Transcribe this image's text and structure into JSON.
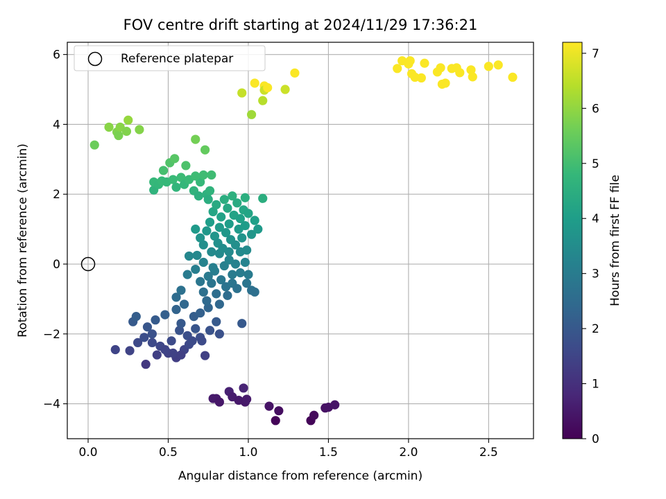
{
  "chart_data": {
    "type": "scatter",
    "title": "FOV centre drift starting at 2024/11/29 17:36:21",
    "xlabel": "Angular distance from reference (arcmin)",
    "ylabel": "Rotation from reference (arcmin)",
    "xlim": [
      -0.13,
      2.78
    ],
    "ylim": [
      -5.0,
      6.35
    ],
    "xticks": [
      0.0,
      0.5,
      1.0,
      1.5,
      2.0,
      2.5
    ],
    "xtick_labels": [
      "0.0",
      "0.5",
      "1.0",
      "1.5",
      "2.0",
      "2.5"
    ],
    "yticks": [
      -4,
      -2,
      0,
      2,
      4,
      6
    ],
    "ytick_labels": [
      "−4",
      "−2",
      "0",
      "2",
      "4",
      "6"
    ],
    "grid": true,
    "colormap": "viridis",
    "colorbar": {
      "label": "Hours from first FF file",
      "range": [
        0,
        7.2
      ],
      "ticks": [
        0,
        1,
        2,
        3,
        4,
        5,
        6,
        7
      ],
      "tick_labels": [
        "0",
        "1",
        "2",
        "3",
        "4",
        "5",
        "6",
        "7"
      ]
    },
    "legend": {
      "position": "top-left",
      "label": "Reference platepar"
    },
    "reference_point": {
      "x": 0.0,
      "y": 0.0
    },
    "series": [
      {
        "points": [
          [
            0.78,
            -3.85
          ],
          [
            0.8,
            -3.85
          ],
          [
            0.82,
            -3.95
          ],
          [
            0.88,
            -3.65
          ],
          [
            0.9,
            -3.8
          ],
          [
            0.94,
            -3.9
          ],
          [
            0.97,
            -3.55
          ],
          [
            0.98,
            -3.95
          ],
          [
            0.99,
            -3.87
          ],
          [
            1.13,
            -4.07
          ],
          [
            1.17,
            -4.48
          ],
          [
            1.19,
            -4.2
          ],
          [
            1.39,
            -4.48
          ],
          [
            1.41,
            -4.33
          ],
          [
            1.48,
            -4.12
          ],
          [
            1.5,
            -4.1
          ],
          [
            1.54,
            -4.03
          ],
          [
            0.17,
            -2.45
          ],
          [
            0.26,
            -2.48
          ],
          [
            0.36,
            -2.87
          ],
          [
            0.43,
            -2.6
          ],
          [
            0.5,
            -2.55
          ],
          [
            0.55,
            -2.68
          ],
          [
            0.6,
            -2.45
          ],
          [
            0.63,
            -2.3
          ],
          [
            0.7,
            -2.1
          ],
          [
            0.73,
            -2.62
          ],
          [
            0.31,
            -2.25
          ],
          [
            0.35,
            -2.1
          ],
          [
            0.4,
            -2.0
          ],
          [
            0.45,
            -2.35
          ],
          [
            0.52,
            -2.2
          ],
          [
            0.57,
            -1.9
          ],
          [
            0.62,
            -2.05
          ],
          [
            0.67,
            -1.85
          ],
          [
            0.71,
            -2.2
          ],
          [
            0.76,
            -1.9
          ],
          [
            0.82,
            -2.0
          ],
          [
            0.28,
            -1.65
          ],
          [
            0.3,
            -1.5
          ],
          [
            0.37,
            -1.8
          ],
          [
            0.42,
            -1.6
          ],
          [
            0.48,
            -1.45
          ],
          [
            0.55,
            -1.3
          ],
          [
            0.58,
            -1.7
          ],
          [
            0.6,
            -1.15
          ],
          [
            0.66,
            -1.5
          ],
          [
            0.7,
            -1.4
          ],
          [
            0.75,
            -1.25
          ],
          [
            0.8,
            -1.65
          ],
          [
            0.48,
            -2.45
          ],
          [
            0.4,
            -2.25
          ],
          [
            0.53,
            -2.55
          ],
          [
            0.58,
            -2.6
          ],
          [
            0.65,
            -2.2
          ],
          [
            0.55,
            -0.95
          ],
          [
            0.58,
            -0.75
          ],
          [
            0.62,
            -0.3
          ],
          [
            0.63,
            0.23
          ],
          [
            0.67,
            -0.15
          ],
          [
            0.68,
            0.25
          ],
          [
            0.7,
            -0.5
          ],
          [
            0.72,
            -0.8
          ],
          [
            0.74,
            -1.05
          ],
          [
            0.75,
            -0.35
          ],
          [
            0.77,
            -0.55
          ],
          [
            0.79,
            -0.2
          ],
          [
            0.8,
            -0.85
          ],
          [
            0.82,
            -1.15
          ],
          [
            0.83,
            -0.45
          ],
          [
            0.85,
            -0.05
          ],
          [
            0.86,
            -0.65
          ],
          [
            0.87,
            -0.9
          ],
          [
            0.88,
            0.12
          ],
          [
            0.9,
            -0.3
          ],
          [
            0.9,
            -0.55
          ],
          [
            0.92,
            0.0
          ],
          [
            0.93,
            -0.7
          ],
          [
            0.95,
            -0.25
          ],
          [
            0.96,
            -1.7
          ],
          [
            0.98,
            0.05
          ],
          [
            0.99,
            -0.55
          ],
          [
            1.0,
            -0.3
          ],
          [
            1.02,
            -0.75
          ],
          [
            1.04,
            -0.8
          ],
          [
            0.95,
            0.35
          ],
          [
            0.88,
            0.35
          ],
          [
            0.82,
            0.3
          ],
          [
            0.78,
            -0.1
          ],
          [
            0.72,
            0.05
          ],
          [
            0.67,
            1.0
          ],
          [
            0.7,
            0.75
          ],
          [
            0.72,
            0.55
          ],
          [
            0.74,
            0.95
          ],
          [
            0.76,
            1.2
          ],
          [
            0.77,
            0.35
          ],
          [
            0.78,
            1.5
          ],
          [
            0.79,
            0.8
          ],
          [
            0.8,
            1.7
          ],
          [
            0.81,
            0.6
          ],
          [
            0.82,
            1.05
          ],
          [
            0.83,
            1.35
          ],
          [
            0.84,
            0.45
          ],
          [
            0.85,
            1.85
          ],
          [
            0.86,
            0.9
          ],
          [
            0.87,
            1.6
          ],
          [
            0.88,
            1.15
          ],
          [
            0.89,
            0.7
          ],
          [
            0.9,
            1.95
          ],
          [
            0.91,
            1.4
          ],
          [
            0.92,
            0.55
          ],
          [
            0.93,
            1.75
          ],
          [
            0.94,
            1.0
          ],
          [
            0.95,
            1.3
          ],
          [
            0.96,
            0.75
          ],
          [
            0.97,
            1.55
          ],
          [
            0.98,
            1.1
          ],
          [
            0.99,
            0.4
          ],
          [
            1.0,
            1.45
          ],
          [
            1.02,
            0.85
          ],
          [
            1.04,
            1.25
          ],
          [
            1.06,
            1.0
          ],
          [
            1.09,
            1.88
          ],
          [
            0.98,
            1.9
          ],
          [
            0.41,
            2.12
          ],
          [
            0.41,
            2.35
          ],
          [
            0.44,
            2.28
          ],
          [
            0.46,
            2.38
          ],
          [
            0.47,
            2.68
          ],
          [
            0.49,
            2.35
          ],
          [
            0.51,
            2.9
          ],
          [
            0.53,
            2.42
          ],
          [
            0.54,
            3.02
          ],
          [
            0.55,
            2.2
          ],
          [
            0.58,
            2.48
          ],
          [
            0.6,
            2.28
          ],
          [
            0.61,
            2.82
          ],
          [
            0.63,
            2.42
          ],
          [
            0.66,
            2.1
          ],
          [
            0.69,
            1.95
          ],
          [
            0.7,
            2.35
          ],
          [
            0.72,
            2.55
          ],
          [
            0.74,
            2.0
          ],
          [
            0.75,
            1.85
          ],
          [
            0.76,
            2.1
          ],
          [
            0.77,
            2.55
          ],
          [
            0.67,
            2.52
          ],
          [
            0.73,
            3.27
          ],
          [
            0.67,
            3.57
          ],
          [
            0.04,
            3.41
          ],
          [
            0.13,
            3.92
          ],
          [
            0.18,
            3.78
          ],
          [
            0.19,
            3.68
          ],
          [
            0.2,
            3.92
          ],
          [
            0.24,
            3.8
          ],
          [
            0.25,
            4.12
          ],
          [
            0.32,
            3.85
          ],
          [
            0.96,
            4.9
          ],
          [
            1.02,
            4.28
          ],
          [
            1.04,
            5.18
          ],
          [
            1.09,
            4.68
          ],
          [
            1.1,
            5.1
          ],
          [
            1.1,
            4.98
          ],
          [
            1.12,
            5.05
          ],
          [
            1.23,
            5.0
          ],
          [
            1.29,
            5.47
          ],
          [
            1.93,
            5.6
          ],
          [
            1.96,
            5.82
          ],
          [
            2.0,
            5.73
          ],
          [
            2.01,
            5.82
          ],
          [
            2.02,
            5.45
          ],
          [
            2.04,
            5.35
          ],
          [
            2.08,
            5.33
          ],
          [
            2.1,
            5.75
          ],
          [
            2.18,
            5.5
          ],
          [
            2.2,
            5.62
          ],
          [
            2.21,
            5.15
          ],
          [
            2.23,
            5.18
          ],
          [
            2.27,
            5.6
          ],
          [
            2.3,
            5.62
          ],
          [
            2.32,
            5.48
          ],
          [
            2.39,
            5.56
          ],
          [
            2.4,
            5.36
          ],
          [
            2.5,
            5.66
          ],
          [
            2.56,
            5.7
          ],
          [
            2.65,
            5.35
          ]
        ]
      }
    ]
  }
}
